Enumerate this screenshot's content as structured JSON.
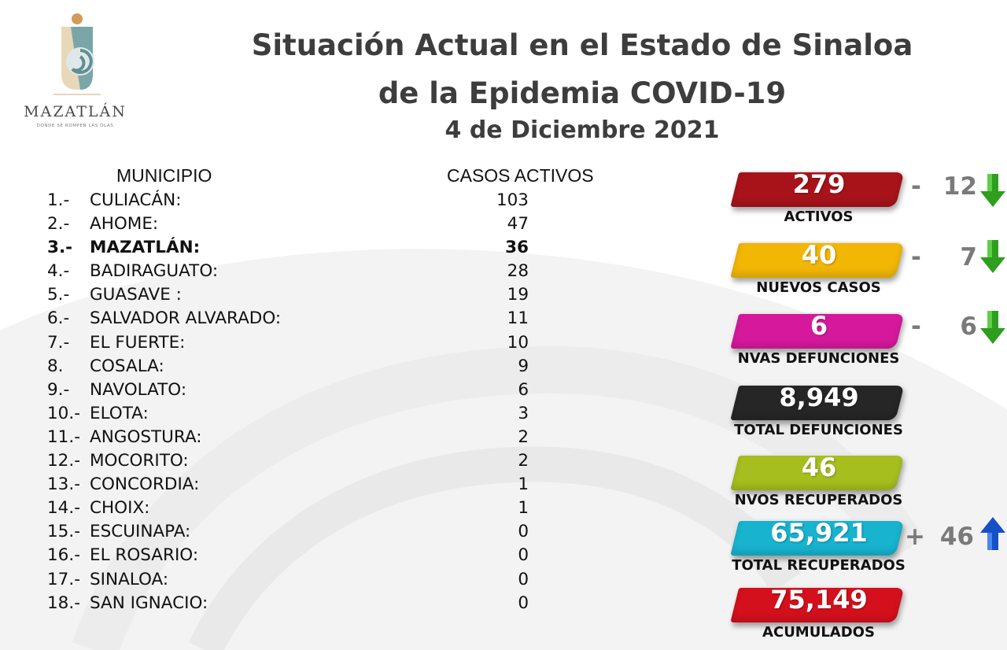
{
  "logo": {
    "word": "MAZATLÁN",
    "tagline": "DONDE SE ROMPEN LAS OLAS"
  },
  "title": {
    "line1": "Situación Actual en el Estado de Sinaloa",
    "line2": "de la Epidemia COVID-19",
    "date": "4 de Diciembre 2021"
  },
  "table": {
    "header_municipio": "MUNICIPIO",
    "header_casos": "CASOS ACTIVOS",
    "rows": [
      {
        "num": "1.-",
        "name": "CULIACÁN:",
        "value": "103"
      },
      {
        "num": "2.-",
        "name": "AHOME:",
        "value": "47"
      },
      {
        "num": "3.-",
        "name": "MAZATLÁN:",
        "value": "36"
      },
      {
        "num": "4.-",
        "name": "BADIRAGUATO:",
        "value": "28"
      },
      {
        "num": "5.-",
        "name": "GUASAVE :",
        "value": "19"
      },
      {
        "num": "6.-",
        "name": "SALVADOR ALVARADO:",
        "value": "11"
      },
      {
        "num": "7.-",
        "name": "EL FUERTE:",
        "value": "10"
      },
      {
        "num": "8.",
        "name": "COSALA:",
        "value": "9"
      },
      {
        "num": "9.-",
        "name": "NAVOLATO:",
        "value": "6"
      },
      {
        "num": "10.-",
        "name": "ELOTA:",
        "value": "3"
      },
      {
        "num": "11.-",
        "name": "ANGOSTURA:",
        "value": "2"
      },
      {
        "num": "12.-",
        "name": "MOCORITO:",
        "value": "2"
      },
      {
        "num": "13.-",
        "name": "CONCORDIA:",
        "value": "1"
      },
      {
        "num": "14.-",
        "name": "CHOIX:",
        "value": "1"
      },
      {
        "num": "15.-",
        "name": "ESCUINAPA:",
        "value": "0"
      },
      {
        "num": "16.-",
        "name": "EL ROSARIO:",
        "value": "0"
      },
      {
        "num": "17.-",
        "name": "SINALOA:",
        "value": "0"
      },
      {
        "num": "18.-",
        "name": "SAN IGNACIO:",
        "value": "0"
      }
    ]
  },
  "stats": {
    "activos": {
      "value": "279",
      "label": "ACTIVOS",
      "color": "#a8131a",
      "change_sign": "-",
      "change_value": "12",
      "arrow": "down-arrow"
    },
    "nuevos_casos": {
      "value": "40",
      "label": "NUEVOS CASOS",
      "color": "#f2b705",
      "change_sign": "-",
      "change_value": "7",
      "arrow": "down-arrow"
    },
    "nvas_defunciones": {
      "value": "6",
      "label": "NVAS DEFUNCIONES",
      "color": "#d6199c",
      "change_sign": "-",
      "change_value": "6",
      "arrow": "down-arrow"
    },
    "total_defunciones": {
      "value": "8,949",
      "label": "TOTAL DEFUNCIONES",
      "color": "#262626"
    },
    "nvos_recuperados": {
      "value": "46",
      "label": "NVOS RECUPERADOS",
      "color": "#a6bf1e"
    },
    "total_recuperados": {
      "value": "65,921",
      "label": "TOTAL RECUPERADOS",
      "color": "#17b3cf",
      "change_sign": "+",
      "change_value": "46",
      "arrow": "up-arrow"
    },
    "acumulados": {
      "value": "75,149",
      "label": "ACUMULADOS",
      "color": "#d4101d"
    }
  },
  "colors": {
    "down_arrow": "#2e9e1f",
    "up_arrow": "#1550c8",
    "title": "#3d3d3d"
  }
}
